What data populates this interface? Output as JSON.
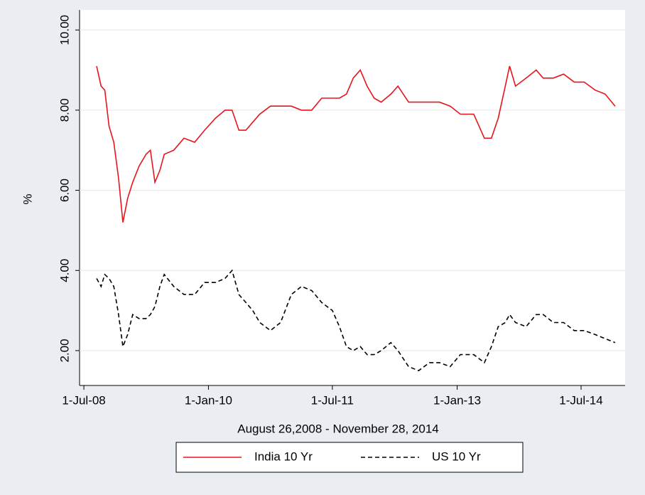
{
  "chart_data": {
    "type": "line",
    "xlabel": "August 26,2008 - November 28, 2014",
    "ylabel": "%",
    "x": [
      "2008-08-26",
      "2008-09-15",
      "2008-10-01",
      "2008-10-20",
      "2008-11-10",
      "2008-12-01",
      "2008-12-20",
      "2009-01-10",
      "2009-02-01",
      "2009-03-01",
      "2009-04-01",
      "2009-04-20",
      "2009-05-10",
      "2009-06-01",
      "2009-06-20",
      "2009-08-01",
      "2009-09-15",
      "2009-11-01",
      "2009-12-15",
      "2010-02-01",
      "2010-03-15",
      "2010-04-15",
      "2010-05-15",
      "2010-06-15",
      "2010-07-15",
      "2010-08-15",
      "2010-10-01",
      "2010-11-15",
      "2011-01-01",
      "2011-02-15",
      "2011-04-01",
      "2011-05-15",
      "2011-07-01",
      "2011-08-01",
      "2011-09-01",
      "2011-10-01",
      "2011-11-01",
      "2011-12-01",
      "2012-01-01",
      "2012-02-01",
      "2012-03-15",
      "2012-04-15",
      "2012-06-01",
      "2012-07-15",
      "2012-09-01",
      "2012-10-15",
      "2012-12-01",
      "2013-01-15",
      "2013-03-15",
      "2013-05-01",
      "2013-06-01",
      "2013-07-01",
      "2013-08-01",
      "2013-08-20",
      "2013-09-15",
      "2013-11-01",
      "2013-12-15",
      "2014-01-15",
      "2014-03-01",
      "2014-04-15",
      "2014-06-01",
      "2014-07-15",
      "2014-09-01",
      "2014-10-15",
      "2014-11-28"
    ],
    "series": [
      {
        "name": "India 10 Yr",
        "color": "#e8141b",
        "dash": "solid",
        "values": [
          9.1,
          8.6,
          8.5,
          7.6,
          7.2,
          6.3,
          5.2,
          5.8,
          6.2,
          6.6,
          6.9,
          7.0,
          6.2,
          6.5,
          6.9,
          7.0,
          7.3,
          7.2,
          7.5,
          7.8,
          8.0,
          8.0,
          7.5,
          7.5,
          7.7,
          7.9,
          8.1,
          8.1,
          8.1,
          8.0,
          8.0,
          8.3,
          8.3,
          8.3,
          8.4,
          8.8,
          9.0,
          8.6,
          8.3,
          8.2,
          8.4,
          8.6,
          8.2,
          8.2,
          8.2,
          8.2,
          8.1,
          7.9,
          7.9,
          7.3,
          7.3,
          7.8,
          8.6,
          9.1,
          8.6,
          8.8,
          9.0,
          8.8,
          8.8,
          8.9,
          8.7,
          8.7,
          8.5,
          8.4,
          8.1
        ]
      },
      {
        "name": "US 10 Yr",
        "color": "#000000",
        "dash": "dashed",
        "values": [
          3.8,
          3.6,
          3.9,
          3.8,
          3.6,
          2.9,
          2.1,
          2.4,
          2.9,
          2.8,
          2.8,
          2.9,
          3.1,
          3.6,
          3.9,
          3.6,
          3.4,
          3.4,
          3.7,
          3.7,
          3.8,
          4.0,
          3.4,
          3.2,
          3.0,
          2.7,
          2.5,
          2.7,
          3.4,
          3.6,
          3.5,
          3.2,
          3.0,
          2.6,
          2.1,
          2.0,
          2.1,
          1.9,
          1.9,
          2.0,
          2.2,
          2.0,
          1.6,
          1.5,
          1.7,
          1.7,
          1.6,
          1.9,
          1.9,
          1.7,
          2.1,
          2.6,
          2.7,
          2.9,
          2.7,
          2.6,
          2.9,
          2.9,
          2.7,
          2.7,
          2.5,
          2.5,
          2.4,
          2.3,
          2.2
        ]
      }
    ],
    "xlim": [
      "2008-06-12",
      "2015-01-11"
    ],
    "xticks": [
      {
        "value": "2008-07-01",
        "label": "1-Jul-08"
      },
      {
        "value": "2010-01-01",
        "label": "1-Jan-10"
      },
      {
        "value": "2011-07-01",
        "label": "1-Jul-11"
      },
      {
        "value": "2013-01-01",
        "label": "1-Jan-13"
      },
      {
        "value": "2014-07-01",
        "label": "1-Jul-14"
      }
    ],
    "ylim": [
      1.13,
      10.5
    ],
    "yticks": [
      {
        "value": 2,
        "label": "2.00"
      },
      {
        "value": 4,
        "label": "4.00"
      },
      {
        "value": 6,
        "label": "6.00"
      },
      {
        "value": 8,
        "label": "8.00"
      },
      {
        "value": 10,
        "label": "10.00"
      }
    ],
    "grid": true,
    "legend": "bottom"
  }
}
